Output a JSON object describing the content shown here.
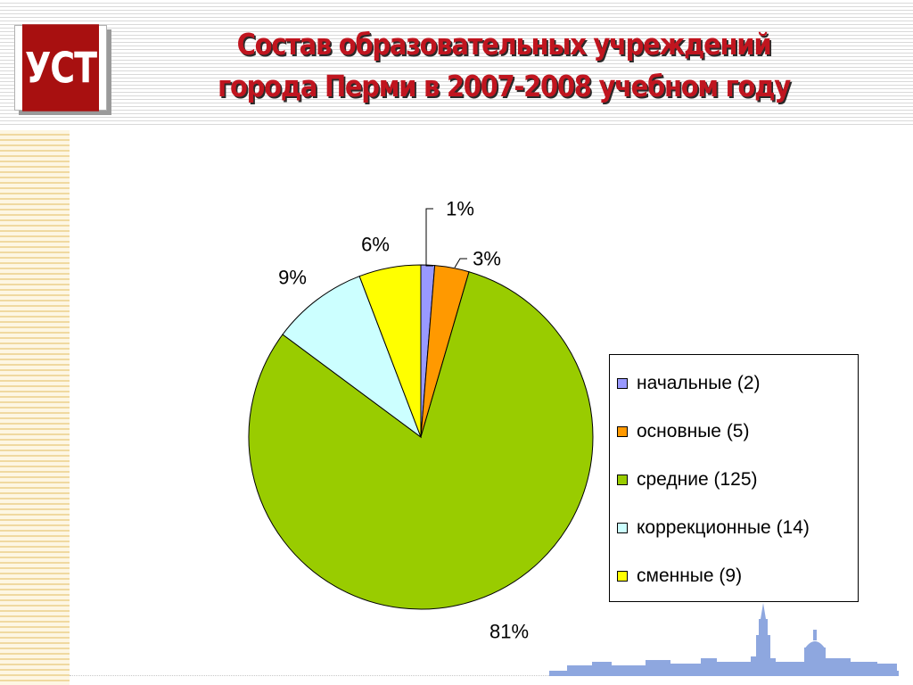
{
  "logo": {
    "text": "УСТ"
  },
  "title": {
    "line1": "Состав образовательных учреждений",
    "line2": "города Перми в 2007-2008 учебном году"
  },
  "chart_data": {
    "type": "pie",
    "title": "Состав образовательных учреждений города Перми в 2007-2008 учебном году",
    "slices": [
      {
        "name": "начальные (2)",
        "value": 2,
        "label": "1%",
        "color": "#9999ff"
      },
      {
        "name": "основные (5)",
        "value": 5,
        "label": "3%",
        "color": "#ff9900"
      },
      {
        "name": "средние (125)",
        "value": 125,
        "label": "81%",
        "color": "#99cc00"
      },
      {
        "name": "коррекционные (14)",
        "value": 14,
        "label": "9%",
        "color": "#ccffff"
      },
      {
        "name": "сменные (9)",
        "value": 9,
        "label": "6%",
        "color": "#ffff00"
      }
    ],
    "legend_position": "right"
  },
  "colors": {
    "title_red": "#c0151f",
    "logo_red": "#a81010",
    "skyline_blue": "#8ea7df"
  }
}
